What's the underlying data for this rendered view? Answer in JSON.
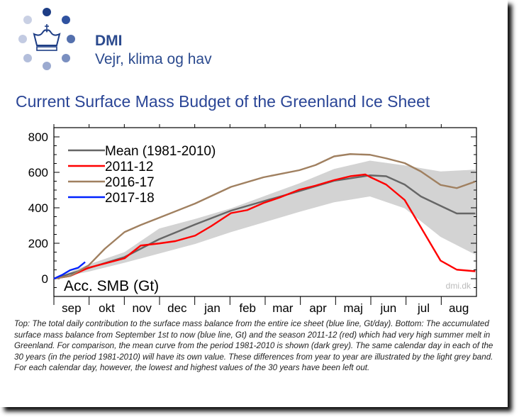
{
  "header": {
    "brand": "DMI",
    "tagline": "Vejr, klima og hav",
    "logo_icon": "crown-with-dots-icon"
  },
  "title": "Current Surface Mass Budget of the Greenland Ice Sheet",
  "caption": "Top: The total daily contribution to the surface mass balance from the entire ice sheet (blue line, Gt/day). Bottom: The accumulated surface mass balance from September 1st to now (blue line, Gt) and the season 2011-12 (red) which had very high summer melt in Greenland. For comparison, the mean curve from the period 1981-2010 is shown (dark grey). The same calendar day in each of the 30 years (in the period 1981-2010) will have its own value. These differences from year to year are illustrated by the light grey band. For each calendar day, however, the lowest and highest values of the 30 years have been left out.",
  "chart_data": {
    "type": "line",
    "ylabel": "Acc. SMB (Gt)",
    "watermark": "dmi.dk",
    "ylim": [
      -100,
      800
    ],
    "yticks": [
      0,
      200,
      400,
      600,
      800
    ],
    "xticklabels": [
      "sep",
      "okt",
      "nov",
      "dec",
      "jan",
      "feb",
      "mar",
      "apr",
      "maj",
      "jun",
      "jul",
      "aug"
    ],
    "legend_placement": "top-left",
    "band": {
      "color": "#d3d3d3",
      "x": [
        "09-01",
        "10-01",
        "11-01",
        "12-01",
        "01-01",
        "02-01",
        "03-01",
        "04-01",
        "05-01",
        "06-01",
        "07-01",
        "08-01",
        "08-31"
      ],
      "upper": [
        0,
        80,
        150,
        283,
        337,
        397,
        464,
        538,
        619,
        666,
        639,
        605,
        615
      ],
      "lower": [
        0,
        40,
        90,
        142,
        196,
        263,
        317,
        377,
        431,
        464,
        397,
        236,
        136
      ]
    },
    "series": [
      {
        "name": "Mean (1981-2010)",
        "color": "#666666",
        "x": [
          "09-01",
          "10-01",
          "11-01",
          "12-01",
          "01-01",
          "02-01",
          "03-01",
          "04-01",
          "05-01",
          "06-01",
          "06-15",
          "07-01",
          "07-15",
          "08-01",
          "08-15",
          "08-31"
        ],
        "y": [
          0,
          60,
          122,
          223,
          306,
          384,
          437,
          494,
          552,
          583,
          578,
          531,
          464,
          411,
          368,
          368
        ]
      },
      {
        "name": "2011-12",
        "color": "#ff0000",
        "x": [
          "09-01",
          "09-15",
          "10-01",
          "11-01",
          "11-15",
          "12-01",
          "12-15",
          "01-01",
          "01-15",
          "02-01",
          "02-15",
          "03-01",
          "03-15",
          "04-01",
          "04-15",
          "05-01",
          "05-15",
          "05-28",
          "06-01",
          "06-15",
          "07-01",
          "07-15",
          "08-01",
          "08-15",
          "08-31"
        ],
        "y": [
          0,
          15,
          62,
          115,
          187,
          199,
          212,
          243,
          297,
          370,
          387,
          427,
          458,
          502,
          525,
          556,
          578,
          588,
          574,
          531,
          444,
          290,
          102,
          51,
          42
        ]
      },
      {
        "name": "2016-17",
        "color": "#a08060",
        "x": [
          "09-01",
          "09-15",
          "10-01",
          "10-15",
          "11-01",
          "11-15",
          "12-01",
          "01-01",
          "02-01",
          "03-01",
          "04-01",
          "04-15",
          "05-01",
          "05-15",
          "06-01",
          "06-15",
          "07-01",
          "07-15",
          "08-01",
          "08-15",
          "08-31"
        ],
        "y": [
          0,
          15,
          75,
          169,
          263,
          303,
          344,
          424,
          518,
          572,
          612,
          641,
          690,
          703,
          699,
          679,
          652,
          605,
          529,
          511,
          548
        ]
      },
      {
        "name": "2017-18",
        "color": "#0022ff",
        "x": [
          "09-01",
          "09-08",
          "09-15",
          "09-22",
          "09-28"
        ],
        "y": [
          0,
          21,
          48,
          62,
          94
        ]
      }
    ]
  }
}
